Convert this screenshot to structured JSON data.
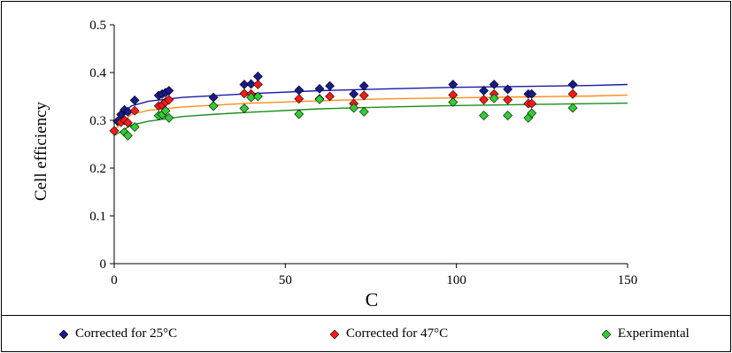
{
  "chart_data": {
    "type": "scatter",
    "title": "",
    "xlabel": "C",
    "ylabel": "Cell efficiency",
    "xlim": [
      0,
      150
    ],
    "ylim": [
      0,
      0.5
    ],
    "x_ticks": [
      "0",
      "50",
      "100",
      "150"
    ],
    "y_ticks": [
      "0",
      "0.1",
      "0.2",
      "0.3",
      "0.4",
      "0.5"
    ],
    "grid": false,
    "legend_position": "bottom",
    "series": [
      {
        "name": "Corrected for 25°C",
        "color": "#1a1a8c",
        "line_color": "#1a1aa8",
        "points": [
          [
            1,
            0.298
          ],
          [
            2,
            0.312
          ],
          [
            3,
            0.322
          ],
          [
            4,
            0.318
          ],
          [
            6,
            0.342
          ],
          [
            13,
            0.352
          ],
          [
            14,
            0.355
          ],
          [
            15,
            0.358
          ],
          [
            16,
            0.362
          ],
          [
            29,
            0.348
          ],
          [
            38,
            0.375
          ],
          [
            40,
            0.376
          ],
          [
            42,
            0.392
          ],
          [
            54,
            0.363
          ],
          [
            60,
            0.366
          ],
          [
            63,
            0.372
          ],
          [
            70,
            0.355
          ],
          [
            73,
            0.372
          ],
          [
            99,
            0.375
          ],
          [
            108,
            0.362
          ],
          [
            111,
            0.375
          ],
          [
            115,
            0.365
          ],
          [
            121,
            0.355
          ],
          [
            122,
            0.355
          ],
          [
            134,
            0.375
          ]
        ],
        "trend": [
          [
            0,
            0.298
          ],
          [
            5,
            0.33
          ],
          [
            10,
            0.34
          ],
          [
            20,
            0.348
          ],
          [
            30,
            0.352
          ],
          [
            40,
            0.356
          ],
          [
            60,
            0.362
          ],
          [
            80,
            0.366
          ],
          [
            100,
            0.369
          ],
          [
            120,
            0.371
          ],
          [
            140,
            0.373
          ],
          [
            150,
            0.375
          ]
        ]
      },
      {
        "name": "Corrected for 47°C",
        "color": "#ff1a1a",
        "line_color": "#ff8c1a",
        "points": [
          [
            0,
            0.278
          ],
          [
            2,
            0.296
          ],
          [
            3,
            0.3
          ],
          [
            4,
            0.295
          ],
          [
            6,
            0.32
          ],
          [
            13,
            0.33
          ],
          [
            14,
            0.332
          ],
          [
            15,
            0.338
          ],
          [
            16,
            0.343
          ],
          [
            29,
            0.33
          ],
          [
            38,
            0.356
          ],
          [
            40,
            0.355
          ],
          [
            42,
            0.375
          ],
          [
            54,
            0.345
          ],
          [
            60,
            0.345
          ],
          [
            63,
            0.35
          ],
          [
            70,
            0.335
          ],
          [
            73,
            0.352
          ],
          [
            99,
            0.353
          ],
          [
            108,
            0.343
          ],
          [
            111,
            0.355
          ],
          [
            115,
            0.343
          ],
          [
            121,
            0.335
          ],
          [
            122,
            0.335
          ],
          [
            134,
            0.355
          ]
        ],
        "trend": [
          [
            0,
            0.28
          ],
          [
            5,
            0.312
          ],
          [
            10,
            0.321
          ],
          [
            20,
            0.328
          ],
          [
            30,
            0.332
          ],
          [
            40,
            0.336
          ],
          [
            60,
            0.341
          ],
          [
            80,
            0.345
          ],
          [
            100,
            0.347
          ],
          [
            120,
            0.349
          ],
          [
            140,
            0.351
          ],
          [
            150,
            0.353
          ]
        ]
      },
      {
        "name": "Experimental",
        "color": "#33cc33",
        "line_color": "#1a8c1a",
        "points": [
          [
            3,
            0.275
          ],
          [
            4,
            0.268
          ],
          [
            6,
            0.286
          ],
          [
            13,
            0.31
          ],
          [
            14,
            0.312
          ],
          [
            15,
            0.32
          ],
          [
            16,
            0.305
          ],
          [
            29,
            0.33
          ],
          [
            38,
            0.325
          ],
          [
            40,
            0.348
          ],
          [
            42,
            0.35
          ],
          [
            54,
            0.313
          ],
          [
            60,
            0.344
          ],
          [
            70,
            0.326
          ],
          [
            73,
            0.318
          ],
          [
            99,
            0.338
          ],
          [
            108,
            0.31
          ],
          [
            111,
            0.346
          ],
          [
            115,
            0.31
          ],
          [
            121,
            0.305
          ],
          [
            122,
            0.315
          ],
          [
            134,
            0.326
          ]
        ],
        "trend": [
          [
            0,
            0.268
          ],
          [
            5,
            0.29
          ],
          [
            10,
            0.298
          ],
          [
            20,
            0.308
          ],
          [
            30,
            0.313
          ],
          [
            40,
            0.317
          ],
          [
            60,
            0.324
          ],
          [
            80,
            0.328
          ],
          [
            100,
            0.331
          ],
          [
            120,
            0.333
          ],
          [
            140,
            0.335
          ],
          [
            150,
            0.336
          ]
        ]
      }
    ]
  }
}
